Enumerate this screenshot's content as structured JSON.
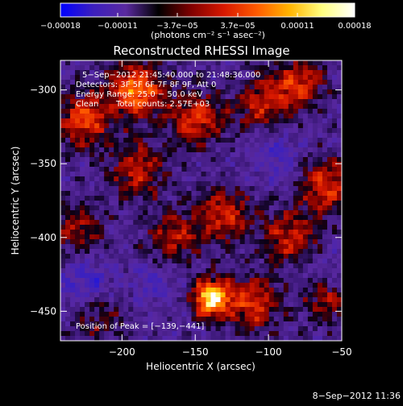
{
  "chart_data": {
    "type": "heatmap",
    "title": "Reconstructed RHESSI Image",
    "xlabel": "Heliocentric X (arcsec)",
    "ylabel": "Heliocentric Y (arcsec)",
    "xlim": [
      -242,
      -50
    ],
    "ylim": [
      -470,
      -280
    ],
    "xticks": [
      -200,
      -150,
      -100,
      -50
    ],
    "yticks": [
      -300,
      -350,
      -400,
      -450
    ],
    "xtick_labels": [
      "−200",
      "−150",
      "−100",
      "−50"
    ],
    "ytick_labels": [
      "−300",
      "−350",
      "−400",
      "−450"
    ],
    "colorbar": {
      "range": [
        -0.00018,
        0.00018
      ],
      "ticks": [
        -0.00018,
        -0.00011,
        -3.7e-05,
        3.7e-05,
        0.00011,
        0.00018
      ],
      "tick_labels": [
        "−0.00018",
        "−0.00011",
        "−3.7e−05",
        "3.7e−05",
        "0.00011",
        "0.00018"
      ],
      "units": "(photons cm⁻² s⁻¹ asec⁻²)",
      "colors": [
        "#0000ff",
        "#3c1fbd",
        "#5a2aa0",
        "#000000",
        "#800000",
        "#d81800",
        "#ff5a00",
        "#ffb400",
        "#ffff80",
        "#ffffff"
      ]
    },
    "annotations": {
      "time_range": "5−Sep−2012 21:45:40.000 to 21:48:36.000",
      "detectors": "Detectors: 3F 5F 6F 7F 8F 9F, Att 0",
      "energy": "Energy Range: 25.0 − 50.0 keV",
      "method": "Clean",
      "counts": "Total counts: 2.57E+03",
      "peak": "Position of Peak = [−139,−441]"
    },
    "peak_position": [
      -139,
      -441
    ],
    "hot_regions": [
      {
        "x": -190,
        "y": -300,
        "level": 0.75
      },
      {
        "x": -225,
        "y": -320,
        "level": 0.6
      },
      {
        "x": -150,
        "y": -320,
        "level": 0.55
      },
      {
        "x": -105,
        "y": -310,
        "level": 0.45
      },
      {
        "x": -80,
        "y": -295,
        "level": 0.5
      },
      {
        "x": -190,
        "y": -355,
        "level": 0.5
      },
      {
        "x": -60,
        "y": -365,
        "level": 0.55
      },
      {
        "x": -130,
        "y": -385,
        "level": 0.5
      },
      {
        "x": -165,
        "y": -400,
        "level": 0.45
      },
      {
        "x": -85,
        "y": -400,
        "level": 0.5
      },
      {
        "x": -230,
        "y": -395,
        "level": 0.4
      },
      {
        "x": -139,
        "y": -441,
        "level": 1.0
      },
      {
        "x": -110,
        "y": -445,
        "level": 0.55
      },
      {
        "x": -60,
        "y": -440,
        "level": 0.45
      },
      {
        "x": -215,
        "y": -455,
        "level": 0.3
      }
    ],
    "cold_regions": [
      {
        "x": -225,
        "y": -430,
        "level": 0.6
      },
      {
        "x": -95,
        "y": -345,
        "level": 0.4
      },
      {
        "x": -60,
        "y": -425,
        "level": 0.5
      },
      {
        "x": -175,
        "y": -430,
        "level": 0.35
      }
    ],
    "footer_date": "8−Sep−2012 11:36"
  }
}
